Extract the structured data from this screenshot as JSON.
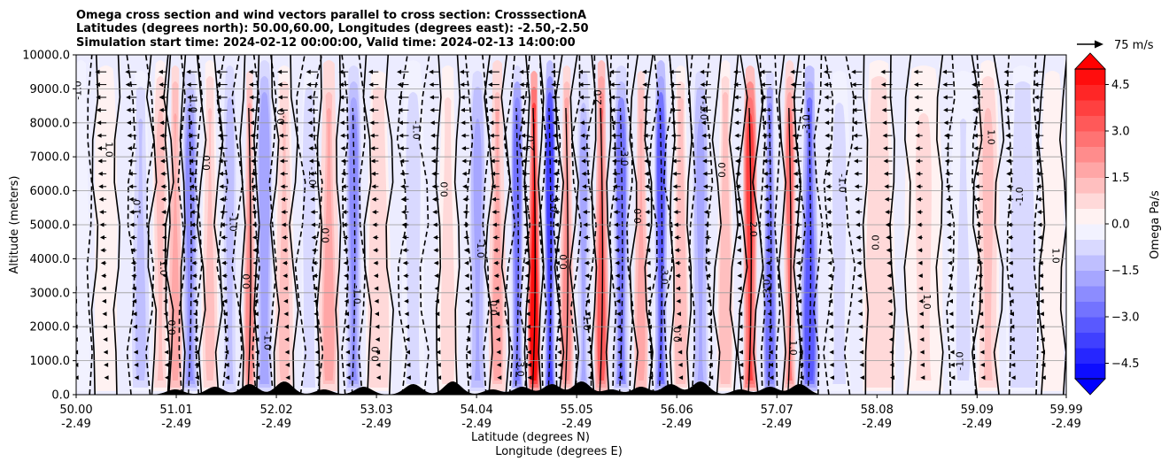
{
  "chart_data": {
    "type": "heatmap",
    "title_lines": [
      "Omega cross section and wind vectors parallel to cross section: CrosssectionA",
      "Latitudes (degrees north): 50.00,60.00, Longitudes (degrees east): -2.50,-2.50",
      "Simulation start time: 2024-02-12 00:00:00, Valid time: 2024-02-13 14:00:00"
    ],
    "ylabel": "Altitude (meters)",
    "xlabel_lat": "Latitude (degrees N)",
    "xlabel_lon": "Longitude (degrees E)",
    "ylim": [
      0,
      10000
    ],
    "yticks": [
      "0.0",
      "1000.0",
      "2000.0",
      "3000.0",
      "4000.0",
      "5000.0",
      "6000.0",
      "7000.0",
      "8000.0",
      "9000.0",
      "10000.0"
    ],
    "xlim": [
      50.0,
      59.99
    ],
    "xticks": [
      {
        "lat": "50.00",
        "lon": "-2.49"
      },
      {
        "lat": "51.01",
        "lon": "-2.49"
      },
      {
        "lat": "52.02",
        "lon": "-2.49"
      },
      {
        "lat": "53.03",
        "lon": "-2.49"
      },
      {
        "lat": "54.04",
        "lon": "-2.49"
      },
      {
        "lat": "55.05",
        "lon": "-2.49"
      },
      {
        "lat": "56.06",
        "lon": "-2.49"
      },
      {
        "lat": "57.07",
        "lon": "-2.49"
      },
      {
        "lat": "58.08",
        "lon": "-2.49"
      },
      {
        "lat": "59.09",
        "lon": "-2.49"
      },
      {
        "lat": "59.99",
        "lon": "-2.49"
      }
    ],
    "colorbar": {
      "label": "Omega Pa/s",
      "range": [
        -5.0,
        5.0
      ],
      "ticks": [
        "4.5",
        "3.0",
        "1.5",
        "0.0",
        "−1.5",
        "−3.0",
        "−4.5"
      ],
      "levels": 20,
      "extend": "both"
    },
    "quiver_key": {
      "label": "75 m/s",
      "value": 75
    },
    "contour_labels": [
      "0.0",
      "1.0",
      "-1.0",
      "2.0",
      "-2.0",
      "-3.0",
      "-4.0"
    ],
    "omega_bands": [
      {
        "lat": 50.05,
        "w": 0.1,
        "v": -0.5
      },
      {
        "lat": 50.3,
        "w": 0.15,
        "v": 0.4
      },
      {
        "lat": 50.65,
        "w": 0.12,
        "v": -1.2
      },
      {
        "lat": 50.85,
        "w": 0.1,
        "v": 1.1
      },
      {
        "lat": 51.0,
        "w": 0.08,
        "v": 1.8
      },
      {
        "lat": 51.15,
        "w": 0.1,
        "v": -2.5
      },
      {
        "lat": 51.35,
        "w": 0.1,
        "v": 1.0
      },
      {
        "lat": 51.55,
        "w": 0.08,
        "v": -1.5
      },
      {
        "lat": 51.75,
        "w": 0.07,
        "v": 2.4
      },
      {
        "lat": 51.9,
        "w": 0.1,
        "v": -2.0
      },
      {
        "lat": 52.1,
        "w": 0.12,
        "v": 1.2
      },
      {
        "lat": 52.35,
        "w": 0.1,
        "v": -1.0
      },
      {
        "lat": 52.55,
        "w": 0.12,
        "v": 1.6
      },
      {
        "lat": 52.8,
        "w": 0.1,
        "v": -2.2
      },
      {
        "lat": 53.05,
        "w": 0.15,
        "v": 0.9
      },
      {
        "lat": 53.4,
        "w": 0.15,
        "v": -0.8
      },
      {
        "lat": 53.75,
        "w": 0.12,
        "v": 0.8
      },
      {
        "lat": 54.05,
        "w": 0.1,
        "v": -1.8
      },
      {
        "lat": 54.25,
        "w": 0.1,
        "v": 1.5
      },
      {
        "lat": 54.45,
        "w": 0.08,
        "v": -2.8
      },
      {
        "lat": 54.62,
        "w": 0.07,
        "v": 4.5
      },
      {
        "lat": 54.78,
        "w": 0.07,
        "v": -4.0
      },
      {
        "lat": 54.95,
        "w": 0.08,
        "v": 2.2
      },
      {
        "lat": 55.12,
        "w": 0.08,
        "v": -1.6
      },
      {
        "lat": 55.3,
        "w": 0.08,
        "v": 3.0
      },
      {
        "lat": 55.5,
        "w": 0.1,
        "v": -2.6
      },
      {
        "lat": 55.7,
        "w": 0.08,
        "v": 1.8
      },
      {
        "lat": 55.9,
        "w": 0.08,
        "v": -3.2
      },
      {
        "lat": 56.1,
        "w": 0.1,
        "v": 1.4
      },
      {
        "lat": 56.3,
        "w": 0.1,
        "v": -1.8
      },
      {
        "lat": 56.55,
        "w": 0.1,
        "v": 1.3
      },
      {
        "lat": 56.8,
        "w": 0.09,
        "v": 3.6
      },
      {
        "lat": 57.0,
        "w": 0.08,
        "v": -2.8
      },
      {
        "lat": 57.2,
        "w": 0.08,
        "v": 2.5
      },
      {
        "lat": 57.4,
        "w": 0.1,
        "v": -3.5
      },
      {
        "lat": 57.7,
        "w": 0.14,
        "v": -0.8
      },
      {
        "lat": 58.1,
        "w": 0.2,
        "v": 0.9
      },
      {
        "lat": 58.55,
        "w": 0.25,
        "v": 0.6
      },
      {
        "lat": 58.95,
        "w": 0.18,
        "v": -0.6
      },
      {
        "lat": 59.2,
        "w": 0.15,
        "v": 1.2
      },
      {
        "lat": 59.55,
        "w": 0.2,
        "v": -1.0
      },
      {
        "lat": 59.85,
        "w": 0.15,
        "v": 0.3
      }
    ]
  }
}
